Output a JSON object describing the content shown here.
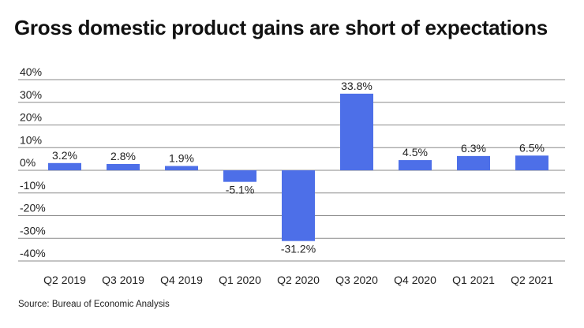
{
  "chart_data": {
    "type": "bar",
    "title": "Gross domestic product gains are short of expectations",
    "xlabel": "",
    "ylabel": "",
    "categories": [
      "Q2 2019",
      "Q3 2019",
      "Q4 2019",
      "Q1 2020",
      "Q2 2020",
      "Q3 2020",
      "Q4 2020",
      "Q1 2021",
      "Q2 2021"
    ],
    "values": [
      3.2,
      2.8,
      1.9,
      -5.1,
      -31.2,
      33.8,
      4.5,
      6.3,
      6.5
    ],
    "data_labels": [
      "3.2%",
      "2.8%",
      "1.9%",
      "-5.1%",
      "-31.2%",
      "33.8%",
      "4.5%",
      "6.3%",
      "6.5%"
    ],
    "ylim": [
      -40,
      40
    ],
    "yticks": [
      40,
      30,
      20,
      10,
      0,
      -10,
      -20,
      -30,
      -40
    ],
    "ytick_labels": [
      "40%",
      "30%",
      "20%",
      "10%",
      "0%",
      "-10%",
      "-20%",
      "-30%",
      "-40%"
    ],
    "grid": true,
    "legend": "none",
    "bar_color": "#4d6fe8",
    "source": "Source: Bureau of Economic Analysis"
  }
}
